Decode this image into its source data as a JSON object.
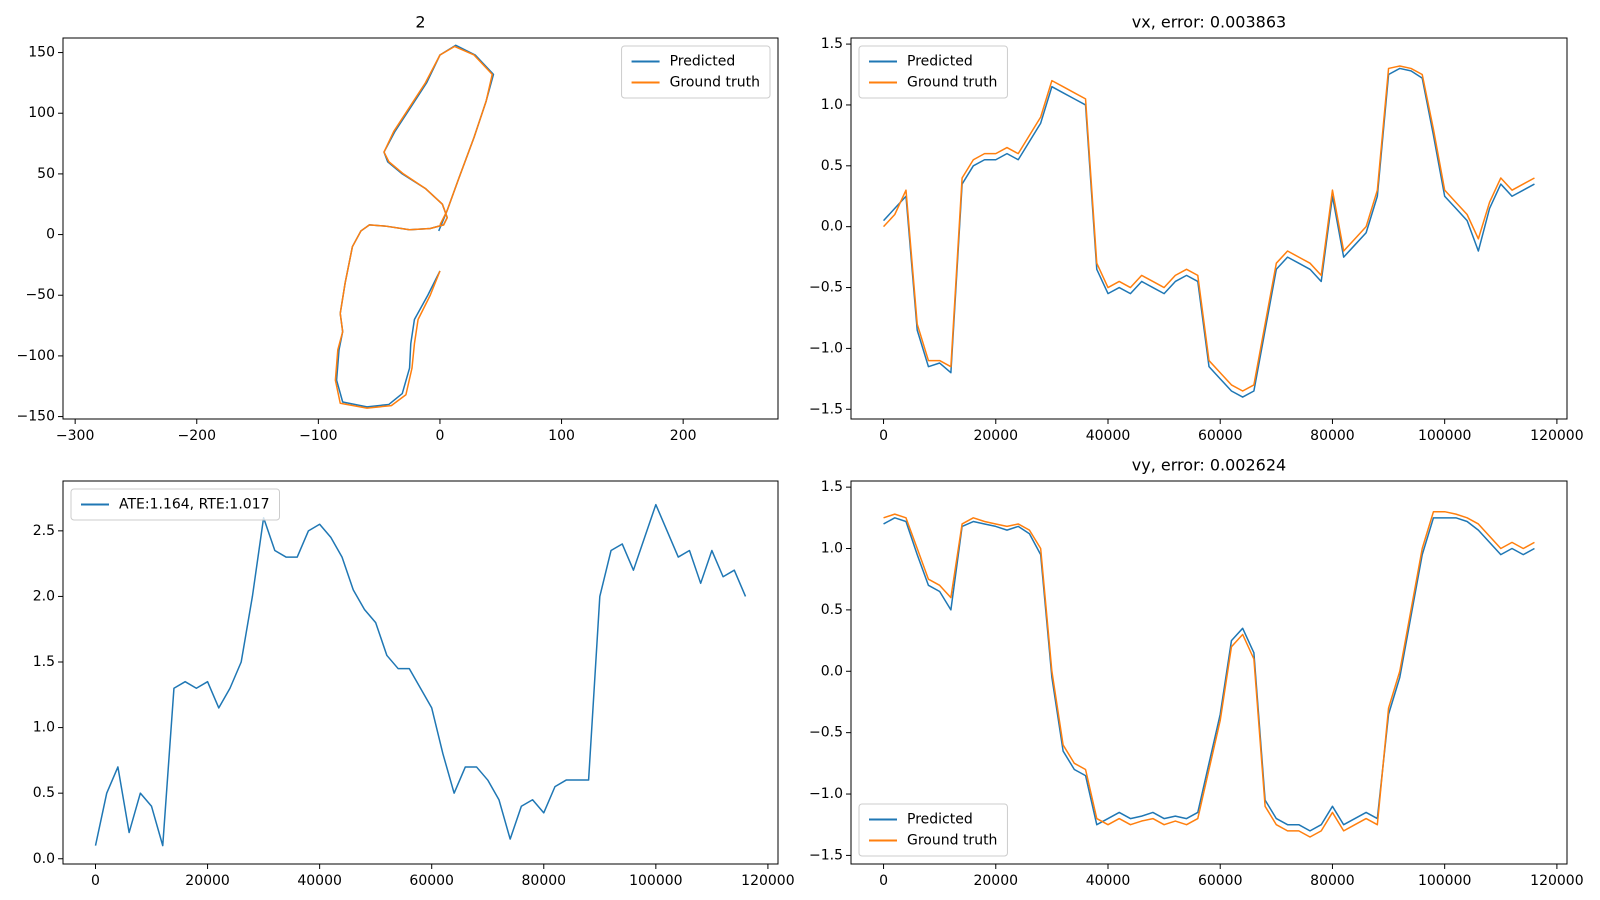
{
  "chart_data": [
    {
      "type": "line",
      "title": "2",
      "legend": "upper right",
      "grid": false,
      "xlim": [
        -310,
        278
      ],
      "ylim": [
        -152,
        162
      ],
      "xticks": [
        {
          "value": -300,
          "label": "−300"
        },
        {
          "value": -200,
          "label": "−200"
        },
        {
          "value": -100,
          "label": "−100"
        },
        0,
        100,
        200
      ],
      "yticks": [
        {
          "value": -150,
          "label": "−150"
        },
        {
          "value": -100,
          "label": "−100"
        },
        {
          "value": -50,
          "label": "−50"
        },
        0,
        50,
        100,
        150
      ],
      "series": [
        {
          "name": "Predicted",
          "color": "#1f77b4",
          "x": [
            0,
            -10,
            -21,
            -24,
            -25,
            -31,
            -42,
            -60,
            -80,
            -85,
            -83,
            -80,
            -82,
            -78,
            -72,
            -65,
            -58,
            -45,
            -25,
            -8,
            3,
            6,
            2,
            -12,
            -31,
            -43,
            -46,
            -37,
            -24,
            -11,
            0,
            13,
            29,
            44,
            38,
            28,
            15,
            6,
            -1
          ],
          "values": [
            -30,
            -50,
            -70,
            -90,
            -110,
            -131,
            -140,
            -142,
            -138,
            -120,
            -95,
            -80,
            -65,
            -40,
            -10,
            3,
            8,
            7,
            4,
            5,
            8,
            14,
            25,
            38,
            50,
            60,
            68,
            85,
            105,
            125,
            148,
            156,
            148,
            132,
            110,
            80,
            45,
            20,
            3
          ]
        },
        {
          "name": "Ground truth",
          "color": "#ff7f0e",
          "x": [
            0,
            -8,
            -18,
            -21,
            -23,
            -28,
            -40,
            -60,
            -82,
            -86,
            -84,
            -80,
            -82,
            -78,
            -72,
            -65,
            -58,
            -45,
            -25,
            -8,
            3,
            6,
            2,
            -12,
            -30,
            -42,
            -46,
            -38,
            -25,
            -12,
            0,
            12,
            28,
            43,
            38,
            28,
            15,
            6,
            0
          ],
          "values": [
            -30,
            -50,
            -70,
            -90,
            -110,
            -132,
            -141,
            -143,
            -139,
            -120,
            -95,
            -80,
            -65,
            -40,
            -10,
            3,
            8,
            7,
            4,
            5,
            8,
            14,
            25,
            38,
            50,
            60,
            68,
            85,
            105,
            125,
            148,
            155,
            148,
            132,
            110,
            80,
            45,
            20,
            8
          ]
        }
      ]
    },
    {
      "type": "line",
      "title": "vx, error: 0.003863",
      "legend": "upper left",
      "grid": false,
      "xlim": [
        -5800,
        121800
      ],
      "ylim": [
        -1.58,
        1.55
      ],
      "xticks": [
        0,
        20000,
        40000,
        60000,
        80000,
        100000,
        120000
      ],
      "yticks": [
        {
          "value": -1.5,
          "label": "−1.5"
        },
        {
          "value": -1,
          "label": "−1.0"
        },
        {
          "value": -0.5,
          "label": "−0.5"
        },
        {
          "value": 0,
          "label": "0.0"
        },
        0.5,
        {
          "value": 1,
          "label": "1.0"
        },
        1.5
      ],
      "x": [
        0,
        2000,
        4000,
        6000,
        8000,
        10000,
        12000,
        14000,
        16000,
        18000,
        20000,
        22000,
        24000,
        26000,
        28000,
        30000,
        32000,
        34000,
        36000,
        38000,
        40000,
        42000,
        44000,
        46000,
        48000,
        50000,
        52000,
        54000,
        56000,
        58000,
        60000,
        62000,
        64000,
        66000,
        68000,
        70000,
        72000,
        74000,
        76000,
        78000,
        80000,
        82000,
        84000,
        86000,
        88000,
        90000,
        92000,
        94000,
        96000,
        98000,
        100000,
        102000,
        104000,
        106000,
        108000,
        110000,
        112000,
        114000,
        116000
      ],
      "series": [
        {
          "name": "Predicted",
          "color": "#1f77b4",
          "values": [
            0.05,
            0.15,
            0.25,
            -0.85,
            -1.15,
            -1.12,
            -1.2,
            0.35,
            0.5,
            0.55,
            0.55,
            0.6,
            0.55,
            0.7,
            0.85,
            1.15,
            1.1,
            1.05,
            1.0,
            -0.35,
            -0.55,
            -0.5,
            -0.55,
            -0.45,
            -0.5,
            -0.55,
            -0.45,
            -0.4,
            -0.45,
            -1.15,
            -1.25,
            -1.35,
            -1.4,
            -1.35,
            -0.85,
            -0.35,
            -0.25,
            -0.3,
            -0.35,
            -0.45,
            0.25,
            -0.25,
            -0.15,
            -0.05,
            0.25,
            1.25,
            1.3,
            1.28,
            1.22,
            0.75,
            0.25,
            0.15,
            0.05,
            -0.2,
            0.15,
            0.35,
            0.25,
            0.3,
            0.35
          ]
        },
        {
          "name": "Ground truth",
          "color": "#ff7f0e",
          "values": [
            0.0,
            0.1,
            0.3,
            -0.8,
            -1.1,
            -1.1,
            -1.15,
            0.4,
            0.55,
            0.6,
            0.6,
            0.65,
            0.6,
            0.75,
            0.9,
            1.2,
            1.15,
            1.1,
            1.05,
            -0.3,
            -0.5,
            -0.45,
            -0.5,
            -0.4,
            -0.45,
            -0.5,
            -0.4,
            -0.35,
            -0.4,
            -1.1,
            -1.2,
            -1.3,
            -1.35,
            -1.3,
            -0.8,
            -0.3,
            -0.2,
            -0.25,
            -0.3,
            -0.4,
            0.3,
            -0.2,
            -0.1,
            0.0,
            0.3,
            1.3,
            1.32,
            1.3,
            1.25,
            0.8,
            0.3,
            0.2,
            0.1,
            -0.1,
            0.2,
            0.4,
            0.3,
            0.35,
            0.4
          ]
        }
      ]
    },
    {
      "type": "line",
      "legend": "upper left",
      "grid": false,
      "xlim": [
        -5800,
        121800
      ],
      "ylim": [
        -0.04,
        2.88
      ],
      "xticks": [
        0,
        20000,
        40000,
        60000,
        80000,
        100000,
        120000
      ],
      "yticks": [
        {
          "value": 0,
          "label": "0.0"
        },
        0.5,
        {
          "value": 1,
          "label": "1.0"
        },
        1.5,
        {
          "value": 2,
          "label": "2.0"
        },
        2.5
      ],
      "x": [
        0,
        2000,
        4000,
        6000,
        8000,
        10000,
        12000,
        14000,
        16000,
        18000,
        20000,
        22000,
        24000,
        26000,
        28000,
        30000,
        32000,
        34000,
        36000,
        38000,
        40000,
        42000,
        44000,
        46000,
        48000,
        50000,
        52000,
        54000,
        56000,
        58000,
        60000,
        62000,
        64000,
        66000,
        68000,
        70000,
        72000,
        74000,
        76000,
        78000,
        80000,
        82000,
        84000,
        86000,
        88000,
        90000,
        92000,
        94000,
        96000,
        98000,
        100000,
        102000,
        104000,
        106000,
        108000,
        110000,
        112000,
        114000,
        116000
      ],
      "series": [
        {
          "name": "ATE:1.164, RTE:1.017",
          "color": "#1f77b4",
          "values": [
            0.1,
            0.5,
            0.7,
            0.2,
            0.5,
            0.4,
            0.1,
            1.3,
            1.35,
            1.3,
            1.35,
            1.15,
            1.3,
            1.5,
            2.0,
            2.6,
            2.35,
            2.3,
            2.3,
            2.5,
            2.55,
            2.45,
            2.3,
            2.05,
            1.9,
            1.8,
            1.55,
            1.45,
            1.45,
            1.3,
            1.15,
            0.8,
            0.5,
            0.7,
            0.7,
            0.6,
            0.45,
            0.15,
            0.4,
            0.45,
            0.35,
            0.55,
            0.6,
            0.6,
            0.6,
            2.0,
            2.35,
            2.4,
            2.2,
            2.45,
            2.7,
            2.5,
            2.3,
            2.35,
            2.1,
            2.35,
            2.15,
            2.2,
            2.0
          ]
        }
      ]
    },
    {
      "type": "line",
      "title": "vy, error: 0.002624",
      "legend": "lower left",
      "grid": false,
      "xlim": [
        -5800,
        121800
      ],
      "ylim": [
        -1.57,
        1.55
      ],
      "xticks": [
        0,
        20000,
        40000,
        60000,
        80000,
        100000,
        120000
      ],
      "yticks": [
        {
          "value": -1.5,
          "label": "−1.5"
        },
        {
          "value": -1,
          "label": "−1.0"
        },
        {
          "value": -0.5,
          "label": "−0.5"
        },
        {
          "value": 0,
          "label": "0.0"
        },
        0.5,
        {
          "value": 1,
          "label": "1.0"
        },
        1.5
      ],
      "x": [
        0,
        2000,
        4000,
        6000,
        8000,
        10000,
        12000,
        14000,
        16000,
        18000,
        20000,
        22000,
        24000,
        26000,
        28000,
        30000,
        32000,
        34000,
        36000,
        38000,
        40000,
        42000,
        44000,
        46000,
        48000,
        50000,
        52000,
        54000,
        56000,
        58000,
        60000,
        62000,
        64000,
        66000,
        68000,
        70000,
        72000,
        74000,
        76000,
        78000,
        80000,
        82000,
        84000,
        86000,
        88000,
        90000,
        92000,
        94000,
        96000,
        98000,
        100000,
        102000,
        104000,
        106000,
        108000,
        110000,
        112000,
        114000,
        116000
      ],
      "series": [
        {
          "name": "Predicted",
          "color": "#1f77b4",
          "values": [
            1.2,
            1.25,
            1.22,
            0.95,
            0.7,
            0.65,
            0.5,
            1.18,
            1.22,
            1.2,
            1.18,
            1.15,
            1.18,
            1.12,
            0.95,
            -0.05,
            -0.65,
            -0.8,
            -0.85,
            -1.25,
            -1.2,
            -1.15,
            -1.2,
            -1.18,
            -1.15,
            -1.2,
            -1.18,
            -1.2,
            -1.15,
            -0.75,
            -0.35,
            0.25,
            0.35,
            0.15,
            -1.05,
            -1.2,
            -1.25,
            -1.25,
            -1.3,
            -1.25,
            -1.1,
            -1.25,
            -1.2,
            -1.15,
            -1.2,
            -0.35,
            -0.05,
            0.45,
            0.95,
            1.25,
            1.25,
            1.25,
            1.22,
            1.15,
            1.05,
            0.95,
            1.0,
            0.95,
            1.0
          ]
        },
        {
          "name": "Ground truth",
          "color": "#ff7f0e",
          "values": [
            1.25,
            1.28,
            1.25,
            1.0,
            0.75,
            0.7,
            0.6,
            1.2,
            1.25,
            1.22,
            1.2,
            1.18,
            1.2,
            1.15,
            1.0,
            0.0,
            -0.6,
            -0.75,
            -0.8,
            -1.2,
            -1.25,
            -1.2,
            -1.25,
            -1.22,
            -1.2,
            -1.25,
            -1.22,
            -1.25,
            -1.2,
            -0.8,
            -0.4,
            0.2,
            0.3,
            0.1,
            -1.1,
            -1.25,
            -1.3,
            -1.3,
            -1.35,
            -1.3,
            -1.15,
            -1.3,
            -1.25,
            -1.2,
            -1.25,
            -0.3,
            0.0,
            0.5,
            1.0,
            1.3,
            1.3,
            1.28,
            1.25,
            1.2,
            1.1,
            1.0,
            1.05,
            1.0,
            1.05
          ]
        }
      ]
    }
  ]
}
